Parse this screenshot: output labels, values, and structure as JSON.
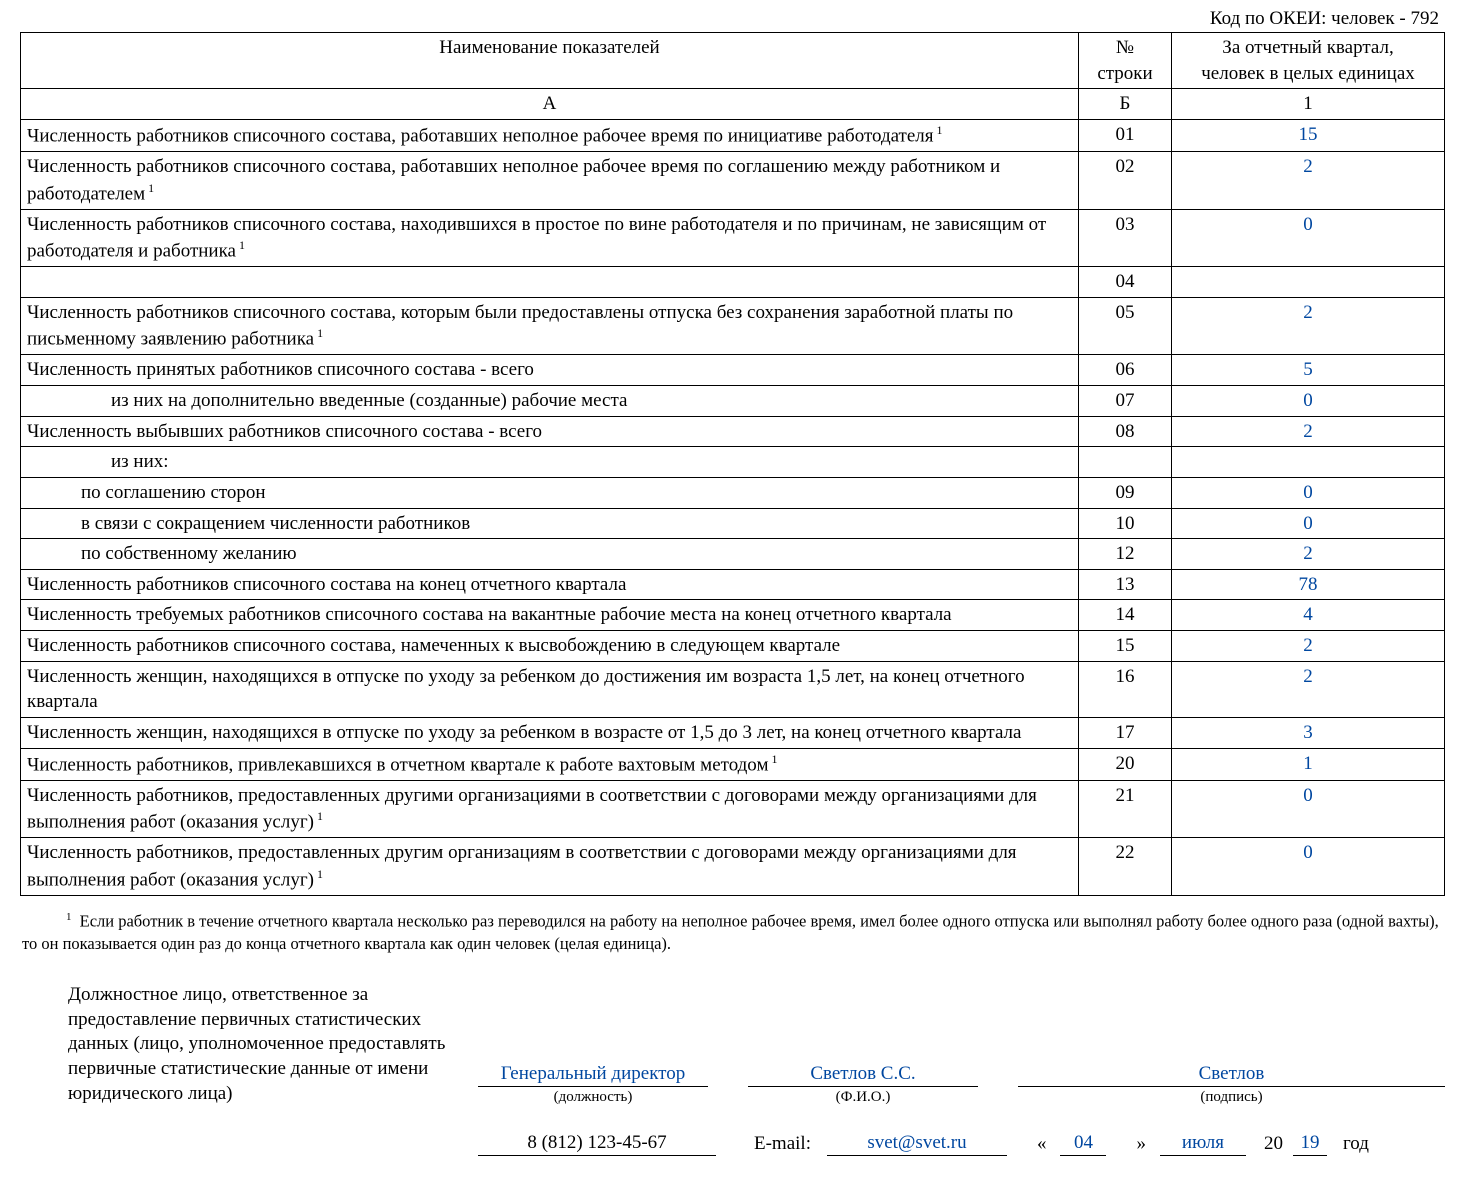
{
  "okei_label": "Код по ОКЕИ: человек - 792",
  "table": {
    "header": {
      "col_a": "Наименование показателей",
      "col_b_line1": "№",
      "col_b_line2": "строки",
      "col_c_line1": "За отчетный квартал,",
      "col_c_line2": "человек в целых единицах",
      "sub_a": "А",
      "sub_b": "Б",
      "sub_c": "1"
    },
    "rows": [
      {
        "label": "Численность работников списочного состава, работавших неполное рабочее время по инициативе работодателя",
        "sup": "1",
        "num": "01",
        "val": "15"
      },
      {
        "label": "Численность работников списочного состава, работавших неполное рабочее время по соглашению между работником и работодателем",
        "sup": "1",
        "num": "02",
        "val": "2"
      },
      {
        "label": "Численность работников списочного состава, находившихся в простое по вине работодателя и по причинам, не зависящим от работодателя и работника",
        "sup": "1",
        "num": "03",
        "val": "0"
      },
      {
        "label": "",
        "num": "04",
        "val": ""
      },
      {
        "label": "Численность работников списочного состава, которым были предоставлены отпуска без сохранения заработной платы по письменному заявлению работника",
        "sup": "1",
        "num": "05",
        "val": "2"
      },
      {
        "label": "Численность принятых работников списочного состава - всего",
        "num": "06",
        "val": "5"
      },
      {
        "label": "из них на дополнительно введенные (созданные) рабочие места",
        "indent": 2,
        "num": "07",
        "val": "0"
      },
      {
        "label": "Численность выбывших работников списочного состава - всего",
        "num": "08",
        "val": "2"
      },
      {
        "label": "из них:",
        "indent": 2,
        "num": "",
        "val": "",
        "noBottomNumVal": true
      },
      {
        "label": "по соглашению сторон",
        "indent": 1,
        "num": "09",
        "val": "0"
      },
      {
        "label": "в связи с сокращением численности работников",
        "indent": 1,
        "num": "10",
        "val": "0"
      },
      {
        "label": "по собственному желанию",
        "indent": 1,
        "num": "12",
        "val": "2"
      },
      {
        "label": "Численность работников списочного состава на конец отчетного квартала",
        "num": "13",
        "val": "78"
      },
      {
        "label": "Численность требуемых работников списочного состава на вакантные рабочие места на конец отчетного квартала",
        "num": "14",
        "val": "4"
      },
      {
        "label": "Численность работников списочного состава, намеченных к высвобождению в следующем квартале",
        "num": "15",
        "val": "2"
      },
      {
        "label": "Численность женщин, находящихся в отпуске по уходу за ребенком до достижения им возраста 1,5 лет, на конец отчетного квартала",
        "num": "16",
        "val": "2"
      },
      {
        "label": "Численность женщин, находящихся в отпуске по уходу за ребенком в возрасте от 1,5 до 3 лет, на конец отчетного квартала",
        "num": "17",
        "val": "3"
      },
      {
        "label": "Численность работников, привлекавшихся в отчетном квартале к работе вахтовым методом",
        "sup": "1",
        "num": "20",
        "val": "1"
      },
      {
        "label": "Численность работников, предоставленных другими организациями в соответствии с договорами между организациями для выполнения работ (оказания услуг)",
        "sup": "1",
        "num": "21",
        "val": "0"
      },
      {
        "label": "Численность работников, предоставленных другим организациям в соответствии с договорами между организациями для выполнения работ (оказания услуг)",
        "sup": "1",
        "num": "22",
        "val": "0"
      }
    ]
  },
  "footnote": {
    "mark": "1",
    "text": "Если работник в течение отчетного квартала несколько раз переводился на работу на неполное рабочее время, имел более одного отпуска или выполнял работу более одного раза (одной вахты), то он показывается один раз до конца отчетного квартала как один человек (целая единица)."
  },
  "signature": {
    "responsible_label": "Должностное лицо, ответственное за предоставление первичных статистических данных (лицо, уполномоченное предоставлять первичные статистические данные от имени юридического лица)",
    "position": "Генеральный директор",
    "position_caption": "(должность)",
    "fio": "Светлов С.С.",
    "fio_caption": "(Ф.И.О.)",
    "sign": "Светлов",
    "sign_caption": "(подпись)",
    "phone": "8 (812) 123-45-67",
    "email_label": "E-mail:",
    "email": "svet@svet.ru",
    "quote_open": "«",
    "day": "04",
    "quote_close": "»",
    "month": "июля",
    "year_prefix": "20",
    "year_suffix": "19",
    "year_word": "год"
  }
}
